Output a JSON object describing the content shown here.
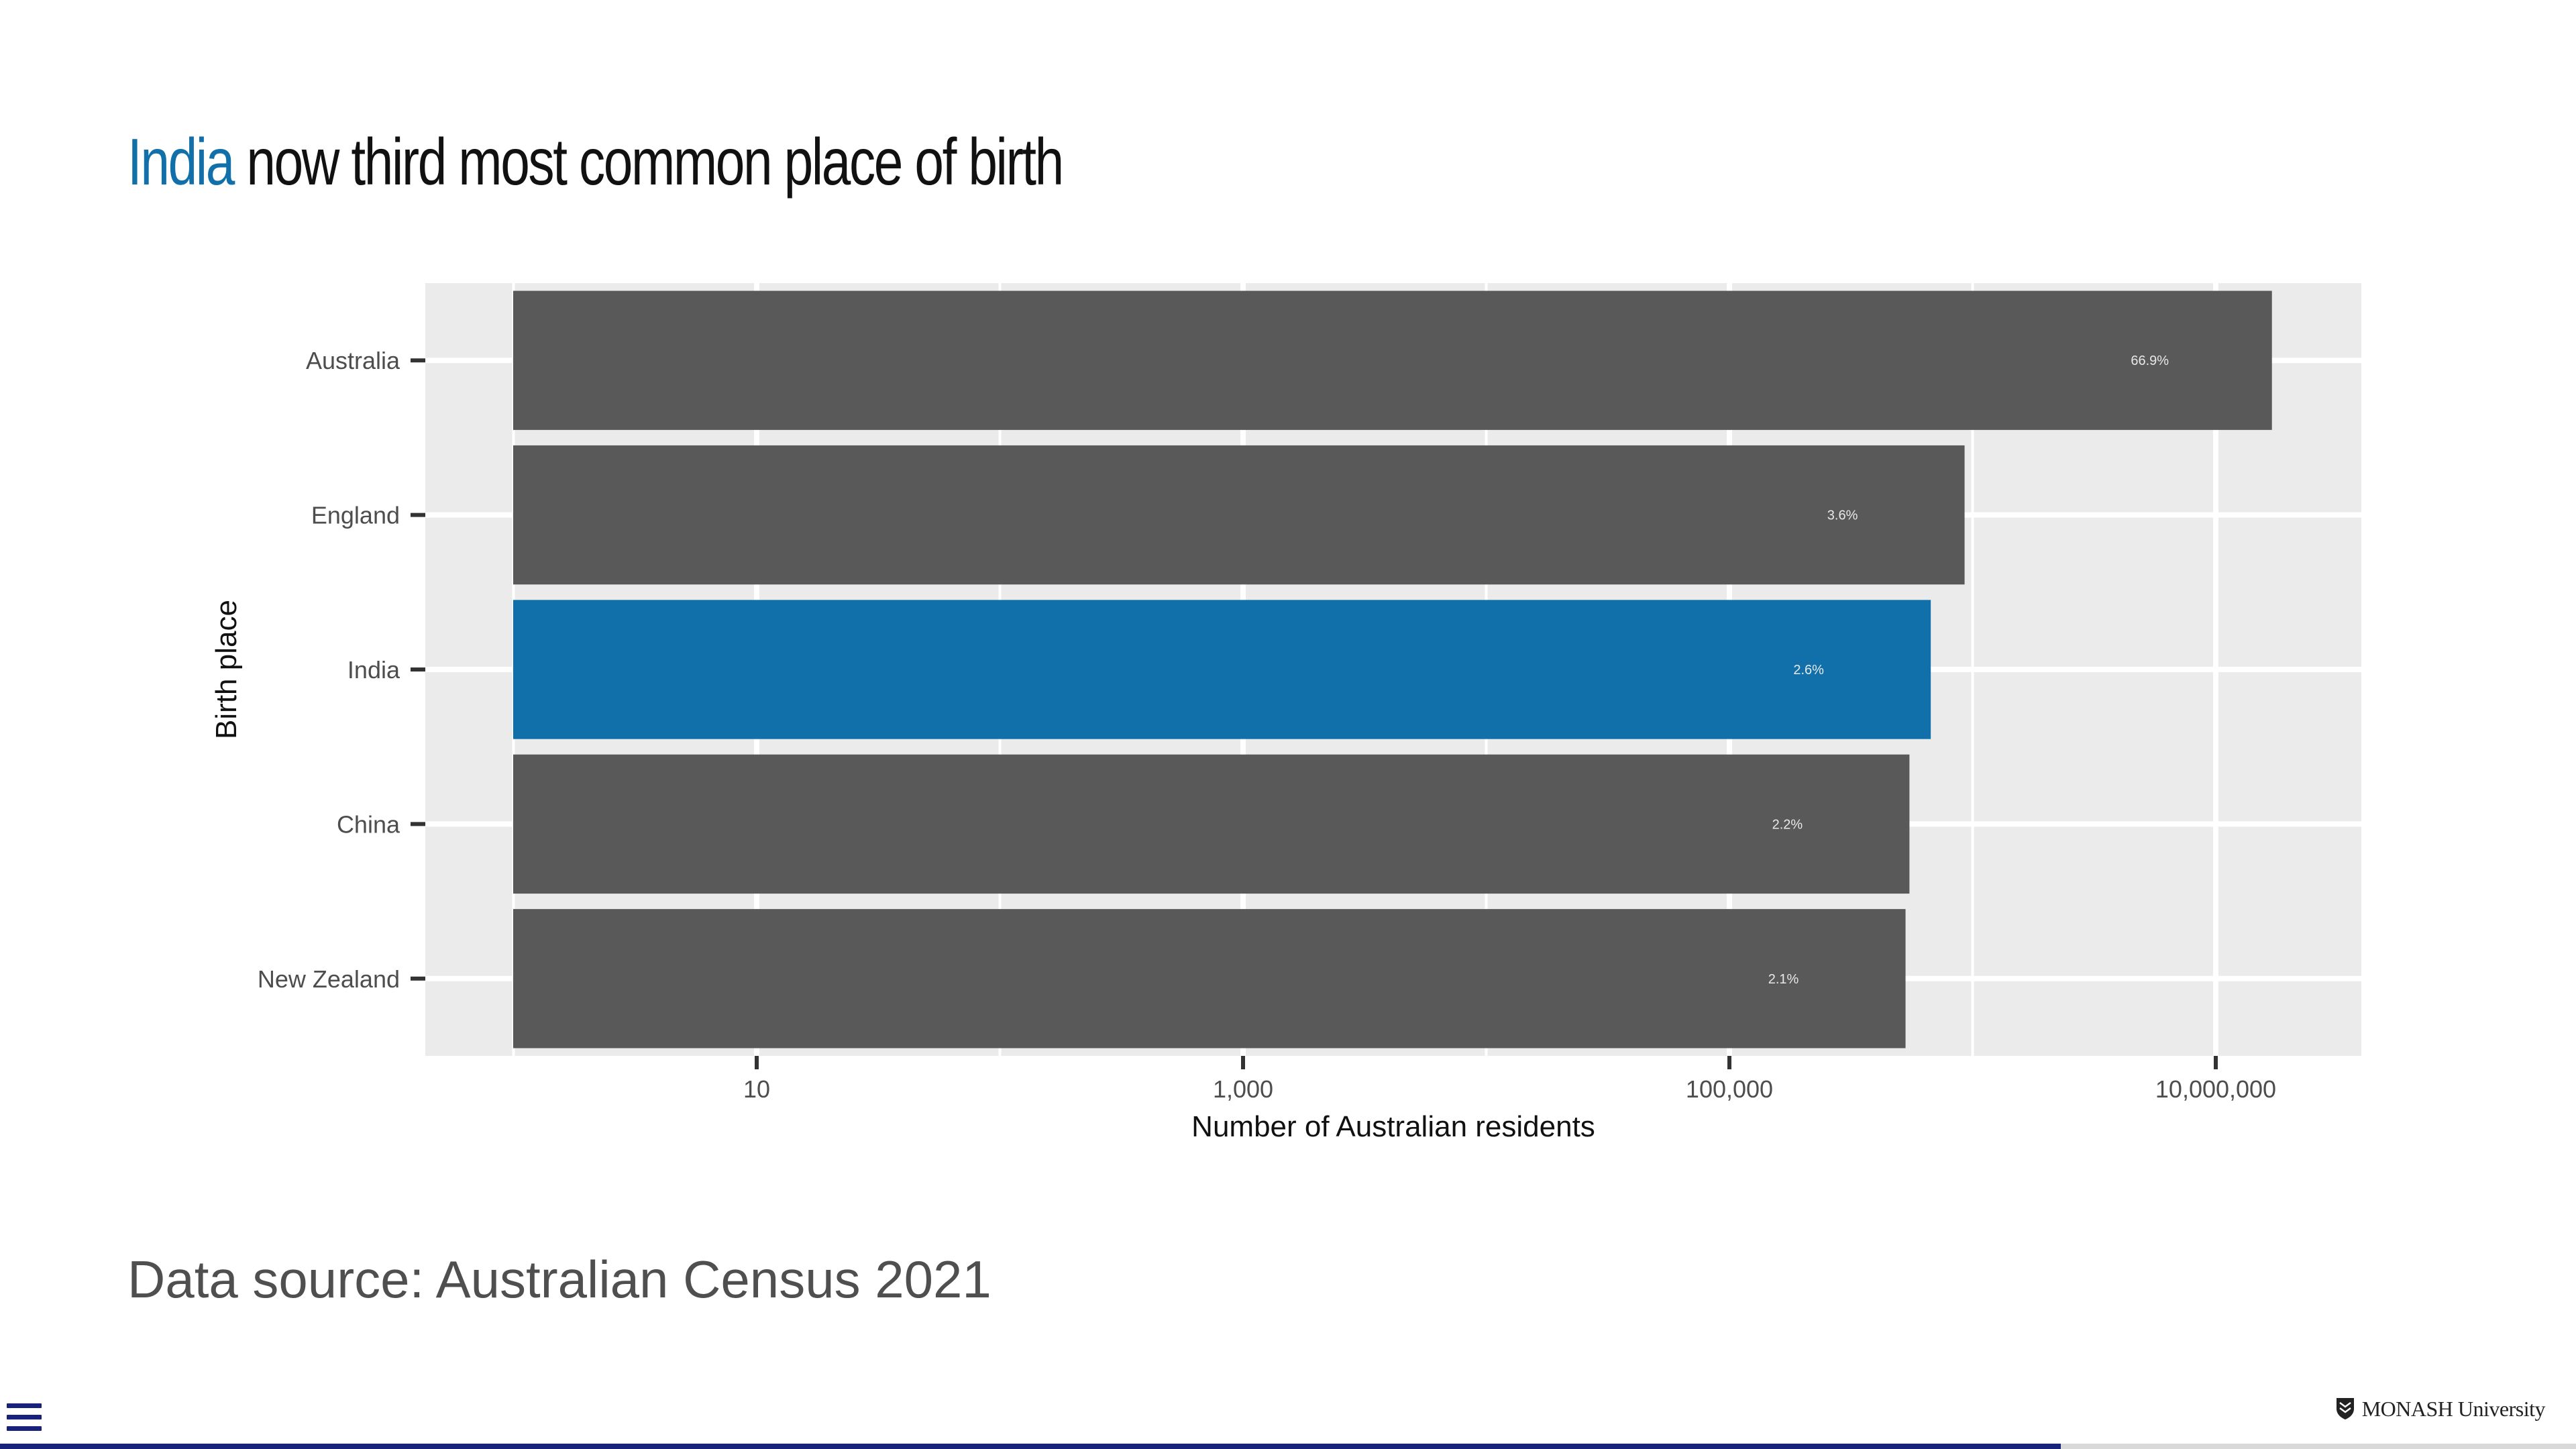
{
  "slide": {
    "title_highlight": "India",
    "title_rest": " now third most common place of birth",
    "source": "Data source: Australian Census 2021",
    "logo_text": "MONASH University",
    "progress_fraction": 0.8
  },
  "colors": {
    "highlight": "#1170aa",
    "bar": "#595959",
    "panel": "#ebebeb",
    "grid": "#ffffff"
  },
  "chart_data": {
    "type": "bar",
    "orientation": "horizontal",
    "xlabel": "Number of Australian residents",
    "ylabel": "Birth place",
    "x_scale": "log10",
    "x_ticks": [
      10,
      1000,
      100000,
      10000000
    ],
    "x_tick_labels": [
      "10",
      "1,000",
      "100,000",
      "10,000,000"
    ],
    "grid": true,
    "categories": [
      "Australia",
      "England",
      "India",
      "China",
      "New Zealand"
    ],
    "values": [
      17020000,
      927000,
      673000,
      550000,
      530000
    ],
    "labels": [
      "66.9%",
      "3.6%",
      "2.6%",
      "2.2%",
      "2.1%"
    ],
    "highlight": "India"
  }
}
